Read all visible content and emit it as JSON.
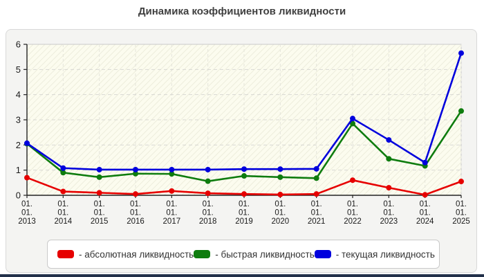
{
  "page": {
    "title": "Динамика коэффициентов ликвидности"
  },
  "chart_data": {
    "type": "line",
    "title": "Динамика коэффициентов ликвидности",
    "categories": [
      "01.01.2013",
      "01.01.2014",
      "01.01.2015",
      "01.01.2016",
      "01.01.2017",
      "01.01.2018",
      "01.01.2019",
      "01.01.2020",
      "01.01.2021",
      "01.01.2022",
      "01.01.2023",
      "01.01.2024",
      "01.01.2025"
    ],
    "series": [
      {
        "name": "абсолютная ликвидность",
        "color": "#e60000",
        "values": [
          0.7,
          0.15,
          0.1,
          0.05,
          0.17,
          0.08,
          0.05,
          0.03,
          0.05,
          0.6,
          0.3,
          0.02,
          0.55
        ]
      },
      {
        "name": "быстрая ликвидность",
        "color": "#0e7c0e",
        "values": [
          2.05,
          0.9,
          0.72,
          0.86,
          0.85,
          0.56,
          0.77,
          0.72,
          0.68,
          2.85,
          1.45,
          1.17,
          3.35
        ]
      },
      {
        "name": "текущая ликвидность",
        "color": "#0000dd",
        "values": [
          2.07,
          1.08,
          1.02,
          1.02,
          1.02,
          1.02,
          1.04,
          1.04,
          1.05,
          3.05,
          2.2,
          1.3,
          5.65
        ]
      }
    ],
    "ylim": [
      0,
      6
    ],
    "y_ticks": [
      0,
      1,
      2,
      3,
      4,
      5,
      6
    ],
    "grid": true,
    "legend_position": "bottom"
  },
  "legend": {
    "items": [
      {
        "label": "- абсолютная ликвидность",
        "color": "#e60000"
      },
      {
        "label": "- быстрая ликвидность",
        "color": "#0e7c0e"
      },
      {
        "label": "- текущая ликвидность",
        "color": "#0000dd"
      }
    ]
  }
}
